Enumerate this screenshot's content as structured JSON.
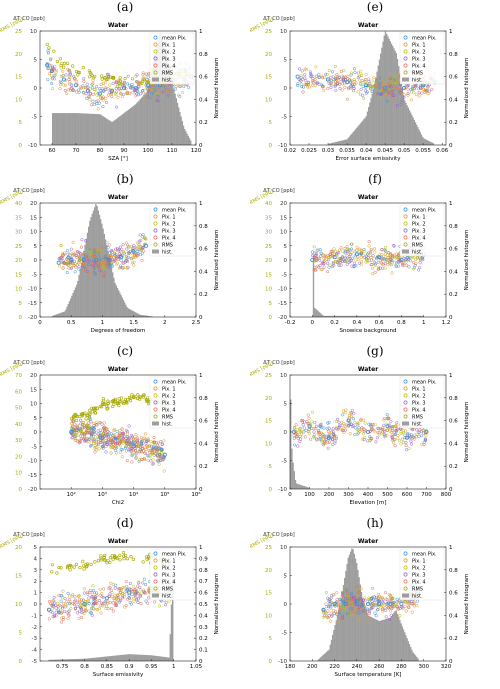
{
  "colors": {
    "mean": "#3a8fd9",
    "pix1": "#e8961e",
    "pix2": "#b9c018",
    "pix3": "#9a5fc8",
    "pix4": "#e07060",
    "rms": "#a8a800",
    "hist": "#9e9e9e",
    "left_axis": "#333333"
  },
  "legend_items": [
    "mean Pix.",
    "Pix. 1",
    "Pix. 2",
    "Pix. 3",
    "Pix. 4",
    "RMS",
    "hist."
  ],
  "left_label_top": "ΔT_CO [ppb]",
  "rms_label": "RMS [ppb]",
  "right_label": "Normalized histogram",
  "panels": [
    {
      "label": "(a)",
      "title": "Water",
      "xlabel": "SZA [°]",
      "xlim": [
        55,
        120
      ],
      "xticks": [
        60,
        70,
        80,
        90,
        100,
        110,
        120
      ],
      "ylim": [
        -10,
        10
      ],
      "yticks": [
        -10,
        -5,
        0,
        5,
        10
      ],
      "rms_ticks": [
        "0",
        "5",
        "10",
        "15",
        "20",
        "25"
      ],
      "hist_ticks": [
        0,
        0.2,
        0.4,
        0.6,
        0.8,
        1
      ],
      "hist_ylim": [
        0,
        1
      ]
    },
    {
      "label": "(e)",
      "title": "Water",
      "xlabel": "Error surface emissivity",
      "xlim": [
        0.02,
        0.061
      ],
      "xticks": [
        0.02,
        0.025,
        0.03,
        0.035,
        0.04,
        0.045,
        0.05,
        0.055,
        0.06
      ],
      "ylim": [
        -10,
        10
      ],
      "yticks": [
        -10,
        -5,
        0,
        5,
        10
      ],
      "rms_ticks": [
        "0",
        "5",
        "10",
        "15",
        "20",
        "25"
      ],
      "hist_ticks": [
        0,
        0.2,
        0.4,
        0.6,
        0.8,
        1
      ],
      "hist_ylim": [
        0,
        1
      ]
    },
    {
      "label": "(b)",
      "title": "Water",
      "xlabel": "Degrees of freedom",
      "xlim": [
        0,
        2.5
      ],
      "xticks": [
        0,
        0.5,
        1,
        1.5,
        2,
        2.5
      ],
      "ylim": [
        -20,
        20
      ],
      "yticks": [
        -20,
        -15,
        -10,
        -5,
        0,
        5,
        10,
        15,
        20
      ],
      "rms_ticks": [
        "0",
        "5",
        "10",
        "15",
        "20",
        "25",
        "30",
        "35",
        "40"
      ],
      "hist_ticks": [
        0,
        0.2,
        0.4,
        0.6,
        0.8,
        1
      ],
      "hist_ylim": [
        0,
        1
      ]
    },
    {
      "label": "(f)",
      "title": "Water",
      "xlabel": "Snowice background",
      "xlim": [
        -0.2,
        1.2
      ],
      "xticks": [
        -0.2,
        0,
        0.2,
        0.4,
        0.6,
        0.8,
        1,
        1.2
      ],
      "ylim": [
        -20,
        20
      ],
      "yticks": [
        -20,
        -15,
        -10,
        -5,
        0,
        5,
        10,
        15,
        20
      ],
      "rms_ticks": [
        "0",
        "5",
        "10",
        "15",
        "20",
        "25",
        "30",
        "35",
        "40"
      ],
      "hist_ticks": [
        0,
        0.2,
        0.4,
        0.6,
        0.8,
        1
      ],
      "hist_ylim": [
        0,
        1
      ]
    },
    {
      "label": "(c)",
      "title": "Water",
      "xlabel": "Chi2",
      "xlim": [
        1,
        6
      ],
      "xticks": [
        2,
        3,
        4,
        5,
        6
      ],
      "xtick_labels": [
        "10²",
        "10³",
        "10⁴",
        "10⁵",
        "10⁶"
      ],
      "xscale": "log",
      "ylim": [
        -20,
        20
      ],
      "yticks": [
        -20,
        -15,
        -10,
        -5,
        0,
        5,
        10,
        15,
        20
      ],
      "rms_ticks": [
        "0",
        "10",
        "20",
        "30",
        "40",
        "50",
        "60",
        "70"
      ],
      "hist_ticks": [
        0,
        0.2,
        0.4,
        0.6,
        0.8,
        1
      ],
      "hist_ylim": [
        0,
        1
      ]
    },
    {
      "label": "(g)",
      "title": "Water",
      "xlabel": "Elevation [m]",
      "xlim": [
        0,
        800
      ],
      "xticks": [
        0,
        100,
        200,
        300,
        400,
        500,
        600,
        700,
        800
      ],
      "ylim": [
        -10,
        10
      ],
      "yticks": [
        -10,
        -5,
        0,
        5,
        10
      ],
      "rms_ticks": [
        "0",
        "5",
        "10",
        "15",
        "20",
        "25"
      ],
      "hist_ticks": [
        0,
        0.2,
        0.4,
        0.6,
        0.8,
        1
      ],
      "hist_ylim": [
        0,
        1
      ]
    },
    {
      "label": "(d)",
      "title": "Water",
      "xlabel": "Surface emissivity",
      "xlim": [
        0.7,
        1.05
      ],
      "xticks": [
        0.75,
        0.8,
        0.85,
        0.9,
        0.95,
        1,
        1.05
      ],
      "ylim": [
        -5,
        5
      ],
      "yticks": [
        -5,
        -4,
        -3,
        -2,
        -1,
        0,
        1,
        2,
        3,
        4,
        5
      ],
      "rms_ticks": [
        "0",
        "5",
        "10",
        "15",
        "20"
      ],
      "hist_ticks": [
        0,
        0.1,
        0.2,
        0.3,
        0.4,
        0.5,
        0.6,
        0.7,
        0.8,
        0.9,
        1
      ],
      "hist_ylim": [
        0,
        1
      ]
    },
    {
      "label": "(h)",
      "title": "Water",
      "xlabel": "Surface temperature [K]",
      "xlim": [
        180,
        320
      ],
      "xticks": [
        180,
        200,
        220,
        240,
        260,
        280,
        300,
        320
      ],
      "ylim": [
        -10,
        10
      ],
      "yticks": [
        -10,
        -5,
        0,
        5,
        10
      ],
      "rms_ticks": [
        "0",
        "5",
        "10",
        "15",
        "20",
        "25"
      ],
      "hist_ticks": [
        0,
        0.2,
        0.4,
        0.6,
        0.8,
        1
      ],
      "hist_ylim": [
        0,
        1
      ]
    }
  ],
  "chart_data": [
    {
      "type": "scatter",
      "panel": "(a)",
      "title": "Water",
      "xlabel": "SZA [°]",
      "ylabel": "ΔT_CO [ppb]",
      "xlim": [
        55,
        120
      ],
      "ylim": [
        -10,
        10
      ],
      "legend": "top-right",
      "series": [
        {
          "name": "mean Pix.",
          "x": [
            58,
            60,
            65,
            70,
            75,
            80,
            85,
            90,
            95,
            100,
            105,
            110,
            115,
            118
          ],
          "y": [
            4,
            3,
            1.5,
            0.5,
            -0.5,
            -1,
            -0.5,
            0,
            0,
            0.5,
            0.5,
            1,
            1.5,
            2
          ]
        },
        {
          "name": "RMS",
          "x": [
            58,
            60,
            65,
            70,
            75,
            80,
            85,
            90,
            95,
            100,
            105,
            110,
            115,
            118
          ],
          "y": [
            7,
            6,
            4,
            3,
            2.5,
            2,
            1.5,
            1,
            1,
            1,
            1.5,
            2,
            3,
            4
          ]
        },
        {
          "name": "hist.",
          "x": [
            60,
            70,
            80,
            85,
            90,
            95,
            100,
            103,
            105,
            108,
            110,
            115,
            118
          ],
          "y": [
            0.28,
            0.28,
            0.27,
            0.2,
            0.28,
            0.36,
            0.48,
            0.82,
            1.0,
            0.78,
            0.55,
            0.15,
            0.03
          ]
        }
      ]
    },
    {
      "type": "scatter",
      "panel": "(e)",
      "title": "Water",
      "xlabel": "Error surface emissivity",
      "ylabel": "ΔT_CO [ppb]",
      "xlim": [
        0.02,
        0.061
      ],
      "ylim": [
        -10,
        10
      ],
      "legend": "top-right",
      "series": [
        {
          "name": "mean Pix.",
          "x": [
            0.022,
            0.03,
            0.035,
            0.04,
            0.045,
            0.05,
            0.055,
            0.058
          ],
          "y": [
            2,
            1.5,
            1,
            0.5,
            0,
            0,
            0.5,
            1
          ]
        },
        {
          "name": "hist.",
          "x": [
            0.03,
            0.035,
            0.04,
            0.042,
            0.045,
            0.048,
            0.05,
            0.055,
            0.058
          ],
          "y": [
            0.01,
            0.05,
            0.25,
            0.5,
            1.0,
            0.8,
            0.4,
            0.06,
            0.01
          ]
        }
      ]
    },
    {
      "type": "scatter",
      "panel": "(b)",
      "title": "Water",
      "xlabel": "Degrees of freedom",
      "ylabel": "ΔT_CO [ppb]",
      "xlim": [
        0,
        2.5
      ],
      "ylim": [
        -20,
        20
      ],
      "legend": "top-right",
      "series": [
        {
          "name": "mean Pix.",
          "x": [
            0.3,
            0.5,
            0.7,
            0.9,
            1.1,
            1.3,
            1.5,
            1.7
          ],
          "y": [
            -1,
            0,
            0,
            0,
            0,
            1,
            3,
            5
          ]
        },
        {
          "name": "hist.",
          "x": [
            0.2,
            0.4,
            0.6,
            0.8,
            0.9,
            1.0,
            1.2,
            1.4,
            1.6,
            1.8
          ],
          "y": [
            0.01,
            0.05,
            0.3,
            0.85,
            1.0,
            0.8,
            0.3,
            0.08,
            0.02,
            0.005
          ]
        }
      ]
    },
    {
      "type": "scatter",
      "panel": "(f)",
      "title": "Water",
      "xlabel": "Snowice background",
      "ylabel": "ΔT_CO [ppb]",
      "xlim": [
        -0.2,
        1.2
      ],
      "ylim": [
        -20,
        20
      ],
      "legend": "top-right",
      "series": [
        {
          "name": "mean Pix.",
          "x": [
            0,
            0.2,
            0.4,
            0.6,
            0.8,
            1.0
          ],
          "y": [
            0,
            1,
            2,
            1,
            0,
            2
          ]
        },
        {
          "name": "hist.",
          "x": [
            0,
            0.02,
            0.1,
            1.0
          ],
          "y": [
            1.0,
            0.08,
            0.01,
            0.01
          ]
        }
      ]
    },
    {
      "type": "scatter",
      "panel": "(c)",
      "title": "Water",
      "xlabel": "Chi2",
      "ylabel": "ΔT_CO [ppb]",
      "xlim": [
        10,
        1000000
      ],
      "ylim": [
        -20,
        20
      ],
      "xscale": "log",
      "legend": "top-right",
      "series": [
        {
          "name": "mean Pix.",
          "x": [
            100,
            1000,
            10000,
            100000
          ],
          "y": [
            0,
            -2,
            -5,
            -8
          ]
        },
        {
          "name": "RMS",
          "x": [
            100,
            1000,
            10000,
            100000
          ],
          "y": [
            5,
            10,
            12,
            10
          ]
        }
      ]
    },
    {
      "type": "scatter",
      "panel": "(g)",
      "title": "Water",
      "xlabel": "Elevation [m]",
      "ylabel": "ΔT_CO [ppb]",
      "xlim": [
        0,
        800
      ],
      "ylim": [
        -10,
        10
      ],
      "legend": "top-right",
      "series": [
        {
          "name": "mean Pix.",
          "x": [
            20,
            100,
            200,
            300,
            400,
            500,
            600,
            700
          ],
          "y": [
            0,
            1,
            -1,
            2,
            0,
            1,
            -1,
            0
          ]
        },
        {
          "name": "hist.",
          "x": [
            0,
            10,
            30,
            100
          ],
          "y": [
            1.0,
            0.3,
            0.05,
            0.01
          ]
        }
      ]
    },
    {
      "type": "scatter",
      "panel": "(d)",
      "title": "Water",
      "xlabel": "Surface emissivity",
      "ylabel": "ΔT_CO [ppb]",
      "xlim": [
        0.7,
        1.05
      ],
      "ylim": [
        -5,
        5
      ],
      "legend": "top-right",
      "series": [
        {
          "name": "mean Pix.",
          "x": [
            0.72,
            0.8,
            0.85,
            0.9,
            0.95,
            0.99
          ],
          "y": [
            -0.5,
            0,
            0.5,
            1,
            1,
            1
          ]
        },
        {
          "name": "RMS",
          "x": [
            0.72,
            0.8,
            0.85,
            0.9,
            0.95,
            0.99
          ],
          "y": [
            3,
            3.5,
            4,
            4,
            4,
            3.5
          ]
        },
        {
          "name": "hist.",
          "x": [
            0.72,
            0.8,
            0.85,
            0.9,
            0.95,
            0.99,
            1.0
          ],
          "y": [
            0.01,
            0.02,
            0.04,
            0.06,
            0.05,
            0.03,
            1.0
          ]
        }
      ]
    },
    {
      "type": "scatter",
      "panel": "(h)",
      "title": "Water",
      "xlabel": "Surface temperature [K]",
      "ylabel": "ΔT_CO [ppb]",
      "xlim": [
        180,
        320
      ],
      "ylim": [
        -10,
        10
      ],
      "legend": "top-right",
      "series": [
        {
          "name": "mean Pix.",
          "x": [
            210,
            220,
            230,
            240,
            250,
            260,
            270,
            280,
            290,
            295
          ],
          "y": [
            -1,
            0,
            0,
            0,
            0,
            0,
            0,
            0,
            1,
            2
          ]
        },
        {
          "name": "hist.",
          "x": [
            205,
            215,
            225,
            232,
            236,
            240,
            245,
            250,
            260,
            270,
            275,
            280,
            290,
            295
          ],
          "y": [
            0.01,
            0.1,
            0.5,
            0.9,
            1.0,
            0.85,
            0.55,
            0.4,
            0.35,
            0.38,
            0.45,
            0.32,
            0.08,
            0.02
          ]
        }
      ]
    }
  ]
}
